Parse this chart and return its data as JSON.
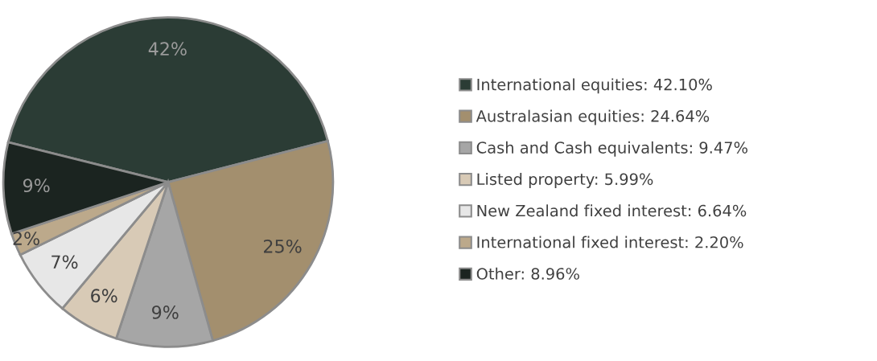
{
  "chart_data": {
    "type": "pie",
    "categories": [
      "International equities: 42.10%",
      "Australasian equities: 24.64%",
      "Cash and Cash equivalents: 9.47%",
      "Listed property: 5.99%",
      "New Zealand fixed interest: 6.64%",
      "International fixed interest: 2.20%",
      "Other: 8.96%"
    ],
    "values": [
      42.1,
      24.64,
      9.47,
      5.99,
      6.64,
      2.2,
      8.96
    ],
    "value_labels": [
      "42%",
      "25%",
      "9%",
      "6%",
      "7%",
      "2%",
      "9%"
    ],
    "colors": [
      "#2b3c35",
      "#a38f6e",
      "#a6a6a6",
      "#d8cab6",
      "#e7e7e7",
      "#bca98b",
      "#1b2420"
    ],
    "legend": "right"
  }
}
